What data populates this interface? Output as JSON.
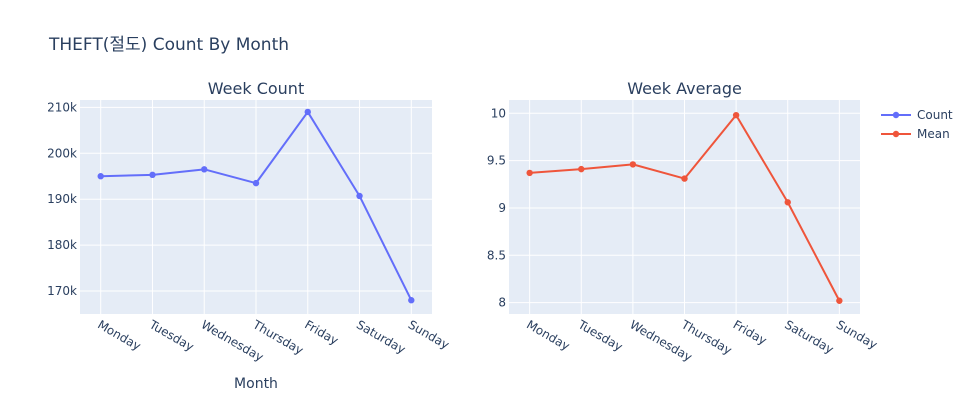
{
  "figure": {
    "title": "THEFT(절도) Count By Month",
    "xlabel": "Month"
  },
  "chart_data": [
    {
      "type": "line",
      "title": "Week Count",
      "categories": [
        "Monday",
        "Tuesday",
        "Wednesday",
        "Thursday",
        "Friday",
        "Saturday",
        "Sunday"
      ],
      "series": [
        {
          "name": "Count",
          "color": "#636efa",
          "values": [
            195000,
            195300,
            196500,
            193500,
            209000,
            190700,
            168000
          ]
        }
      ],
      "ylim": [
        165000,
        211600
      ],
      "yticks": [
        170000,
        180000,
        190000,
        200000,
        210000
      ],
      "ytick_labels": [
        "170k",
        "180k",
        "190k",
        "200k",
        "210k"
      ]
    },
    {
      "type": "line",
      "title": "Week Average",
      "categories": [
        "Monday",
        "Tuesday",
        "Wednesday",
        "Thursday",
        "Friday",
        "Saturday",
        "Sunday"
      ],
      "series": [
        {
          "name": "Mean",
          "color": "#ef553b",
          "values": [
            9.37,
            9.41,
            9.46,
            9.31,
            9.98,
            9.06,
            8.02
          ]
        }
      ],
      "ylim": [
        7.88,
        10.14
      ],
      "yticks": [
        8,
        8.5,
        9,
        9.5,
        10
      ],
      "ytick_labels": [
        "8",
        "8.5",
        "9",
        "9.5",
        "10"
      ]
    }
  ],
  "legend": {
    "placement": "top-right",
    "items": [
      {
        "label": "Count",
        "color": "#636efa"
      },
      {
        "label": "Mean",
        "color": "#ef553b"
      }
    ]
  },
  "style": {
    "plot_bg": "#e5ecf6",
    "grid": "#ffffff",
    "text": "#2a3f5f"
  }
}
